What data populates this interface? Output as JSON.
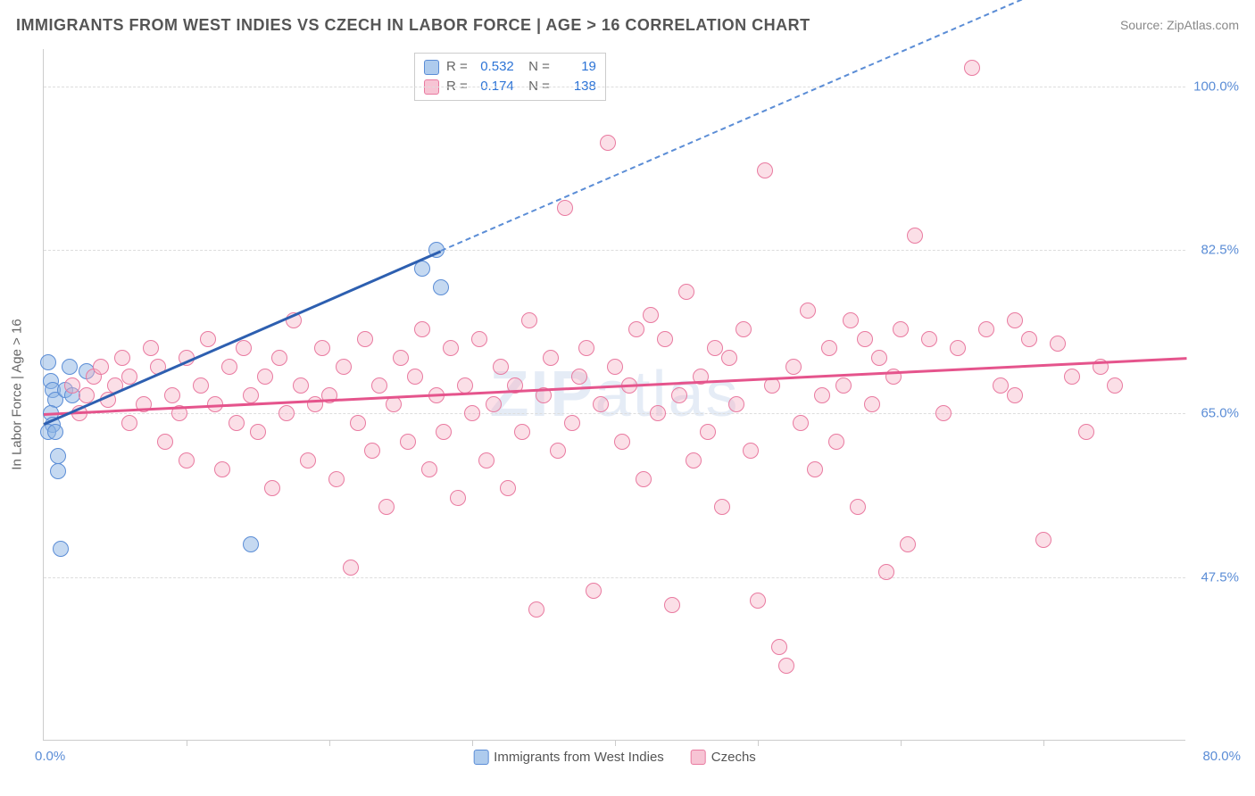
{
  "title": "IMMIGRANTS FROM WEST INDIES VS CZECH IN LABOR FORCE | AGE > 16 CORRELATION CHART",
  "source": "Source: ZipAtlas.com",
  "watermark_a": "ZIP",
  "watermark_b": "atlas",
  "chart": {
    "type": "scatter",
    "xlim": [
      0,
      80
    ],
    "ylim": [
      30,
      104
    ],
    "x_start_label": "0.0%",
    "x_end_label": "80.0%",
    "x_tick_positions": [
      10,
      20,
      30,
      40,
      50,
      60,
      70
    ],
    "y_gridlines": [
      {
        "value": 47.5,
        "label": "47.5%"
      },
      {
        "value": 65.0,
        "label": "65.0%"
      },
      {
        "value": 82.5,
        "label": "82.5%"
      },
      {
        "value": 100.0,
        "label": "100.0%"
      }
    ],
    "y_axis_label": "In Labor Force | Age > 16",
    "background_color": "#ffffff",
    "grid_color": "#dddddd",
    "axis_color": "#cccccc",
    "marker_radius": 9,
    "series": [
      {
        "name": "Immigrants from West Indies",
        "color_fill": "rgba(139,179,228,0.5)",
        "color_stroke": "#5b8dd6",
        "trend_color": "#2d5fb0",
        "r": "0.532",
        "n": "19",
        "trend": {
          "x1": 0,
          "y1": 64.0,
          "x2_solid": 27.8,
          "y2_solid": 82.5,
          "x2_dash": 80,
          "y2_dash": 117
        },
        "points": [
          [
            0.3,
            70.5
          ],
          [
            0.5,
            68.5
          ],
          [
            0.6,
            67.5
          ],
          [
            0.8,
            66.5
          ],
          [
            0.5,
            65.0
          ],
          [
            0.6,
            63.8
          ],
          [
            0.3,
            63.0
          ],
          [
            0.8,
            63.0
          ],
          [
            1.0,
            60.5
          ],
          [
            1.0,
            58.8
          ],
          [
            1.5,
            67.5
          ],
          [
            1.8,
            70.0
          ],
          [
            2.0,
            67.0
          ],
          [
            3.0,
            69.5
          ],
          [
            1.2,
            50.5
          ],
          [
            14.5,
            51.0
          ],
          [
            26.5,
            80.5
          ],
          [
            27.5,
            82.5
          ],
          [
            27.8,
            78.5
          ]
        ]
      },
      {
        "name": "Czechs",
        "color_fill": "rgba(245,175,195,0.4)",
        "color_stroke": "#e97aa0",
        "trend_color": "#e5548c",
        "r": "0.174",
        "n": "138",
        "trend": {
          "x1": 0,
          "y1": 65.0,
          "x2_solid": 80,
          "y2_solid": 71.0
        },
        "points": [
          [
            2,
            68
          ],
          [
            2.5,
            65
          ],
          [
            3,
            67
          ],
          [
            3.5,
            69
          ],
          [
            4,
            70
          ],
          [
            4.5,
            66.5
          ],
          [
            5,
            68
          ],
          [
            5.5,
            71
          ],
          [
            6,
            64
          ],
          [
            6,
            69
          ],
          [
            7,
            66
          ],
          [
            7.5,
            72
          ],
          [
            8,
            70
          ],
          [
            8.5,
            62
          ],
          [
            9,
            67
          ],
          [
            9.5,
            65
          ],
          [
            10,
            71
          ],
          [
            10,
            60
          ],
          [
            11,
            68
          ],
          [
            11.5,
            73
          ],
          [
            12,
            66
          ],
          [
            12.5,
            59
          ],
          [
            13,
            70
          ],
          [
            13.5,
            64
          ],
          [
            14,
            72
          ],
          [
            14.5,
            67
          ],
          [
            15,
            63
          ],
          [
            15.5,
            69
          ],
          [
            16,
            57
          ],
          [
            16.5,
            71
          ],
          [
            17,
            65
          ],
          [
            17.5,
            75
          ],
          [
            18,
            68
          ],
          [
            18.5,
            60
          ],
          [
            19,
            66
          ],
          [
            19.5,
            72
          ],
          [
            20,
            67
          ],
          [
            20.5,
            58
          ],
          [
            21,
            70
          ],
          [
            21.5,
            48.5
          ],
          [
            22,
            64
          ],
          [
            22.5,
            73
          ],
          [
            23,
            61
          ],
          [
            23.5,
            68
          ],
          [
            24,
            55
          ],
          [
            24.5,
            66
          ],
          [
            25,
            71
          ],
          [
            25.5,
            62
          ],
          [
            26,
            69
          ],
          [
            26.5,
            74
          ],
          [
            27,
            59
          ],
          [
            27.5,
            67
          ],
          [
            28,
            63
          ],
          [
            28.5,
            72
          ],
          [
            29,
            56
          ],
          [
            29.5,
            68
          ],
          [
            30,
            65
          ],
          [
            30.5,
            73
          ],
          [
            31,
            60
          ],
          [
            31.5,
            66
          ],
          [
            32,
            70
          ],
          [
            32.5,
            57
          ],
          [
            33,
            68
          ],
          [
            33.5,
            63
          ],
          [
            34,
            75
          ],
          [
            34.5,
            44
          ],
          [
            35,
            67
          ],
          [
            35.5,
            71
          ],
          [
            36,
            61
          ],
          [
            36.5,
            87
          ],
          [
            37,
            64
          ],
          [
            37.5,
            69
          ],
          [
            38,
            72
          ],
          [
            38.5,
            46
          ],
          [
            39,
            66
          ],
          [
            39.5,
            94
          ],
          [
            40,
            70
          ],
          [
            40.5,
            62
          ],
          [
            41,
            68
          ],
          [
            41.5,
            74
          ],
          [
            42,
            58
          ],
          [
            42.5,
            75.5
          ],
          [
            43,
            65
          ],
          [
            43.5,
            73
          ],
          [
            44,
            44.5
          ],
          [
            44.5,
            67
          ],
          [
            45,
            78
          ],
          [
            45.5,
            60
          ],
          [
            46,
            69
          ],
          [
            46.5,
            63
          ],
          [
            47,
            72
          ],
          [
            47.5,
            55
          ],
          [
            48,
            71
          ],
          [
            48.5,
            66
          ],
          [
            49,
            74
          ],
          [
            49.5,
            61
          ],
          [
            50,
            45
          ],
          [
            50.5,
            91
          ],
          [
            51,
            68
          ],
          [
            51.5,
            40
          ],
          [
            52,
            38
          ],
          [
            52.5,
            70
          ],
          [
            53,
            64
          ],
          [
            53.5,
            76
          ],
          [
            54,
            59
          ],
          [
            54.5,
            67
          ],
          [
            55,
            72
          ],
          [
            55.5,
            62
          ],
          [
            56,
            68
          ],
          [
            56.5,
            75
          ],
          [
            57,
            55
          ],
          [
            57.5,
            73
          ],
          [
            58,
            66
          ],
          [
            58.5,
            71
          ],
          [
            59,
            48
          ],
          [
            59.5,
            69
          ],
          [
            60,
            74
          ],
          [
            60.5,
            51
          ],
          [
            61,
            84
          ],
          [
            62,
            73
          ],
          [
            63,
            65
          ],
          [
            64,
            72
          ],
          [
            65,
            102
          ],
          [
            66,
            74
          ],
          [
            67,
            68
          ],
          [
            68,
            75
          ],
          [
            68,
            67
          ],
          [
            70,
            51.5
          ],
          [
            71,
            72.5
          ],
          [
            72,
            69
          ],
          [
            73,
            63
          ],
          [
            74,
            70
          ],
          [
            75,
            68
          ],
          [
            69,
            73
          ]
        ]
      }
    ],
    "legend_bottom": [
      {
        "swatch": "blue",
        "label": "Immigrants from West Indies"
      },
      {
        "swatch": "pink",
        "label": "Czechs"
      }
    ]
  }
}
